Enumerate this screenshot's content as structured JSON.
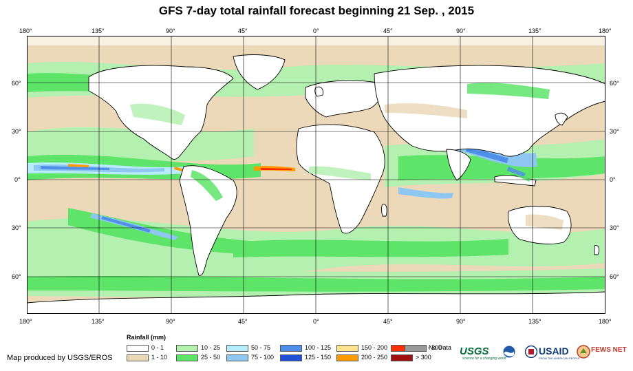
{
  "title": "GFS 7-day total rainfall forecast beginning 21 Sep. , 2015",
  "lon_labels": [
    "180°",
    "135°",
    "90°",
    "45°",
    "0°",
    "45°",
    "90°",
    "135°",
    "180°"
  ],
  "lat_labels": [
    "60°",
    "30°",
    "0°",
    "30°",
    "60°"
  ],
  "legend": {
    "title": "Rainfall (mm)",
    "items": [
      {
        "label": "0 - 1",
        "color": "#ffffff"
      },
      {
        "label": "1 - 10",
        "color": "#ecd9b9"
      },
      {
        "label": "10 - 25",
        "color": "#b4f0b0"
      },
      {
        "label": "25 - 50",
        "color": "#5fe46a"
      },
      {
        "label": "50 - 75",
        "color": "#b7ecf8"
      },
      {
        "label": "75 - 100",
        "color": "#8ec8f2"
      },
      {
        "label": "100 - 125",
        "color": "#4f8fea"
      },
      {
        "label": "125 - 150",
        "color": "#2050d8"
      },
      {
        "label": "150 - 200",
        "color": "#ffe490"
      },
      {
        "label": "200 - 250",
        "color": "#ff9b00"
      },
      {
        "label": "250 - 300",
        "color": "#ff3000"
      },
      {
        "label": "> 300",
        "color": "#a01010"
      },
      {
        "label": "No Data",
        "color": "#999999"
      }
    ]
  },
  "credit": "Map produced by USGS/EROS",
  "logos": {
    "usgs": "USGS",
    "usgs_tagline": "science for a changing world",
    "usaid": "USAID",
    "usaid_tagline": "FROM THE AMERICAN PEOPLE",
    "fews": "FEWS NET"
  },
  "colors": {
    "ocean": "#ffffff",
    "land_outline": "#000000",
    "grid": "#000000"
  }
}
